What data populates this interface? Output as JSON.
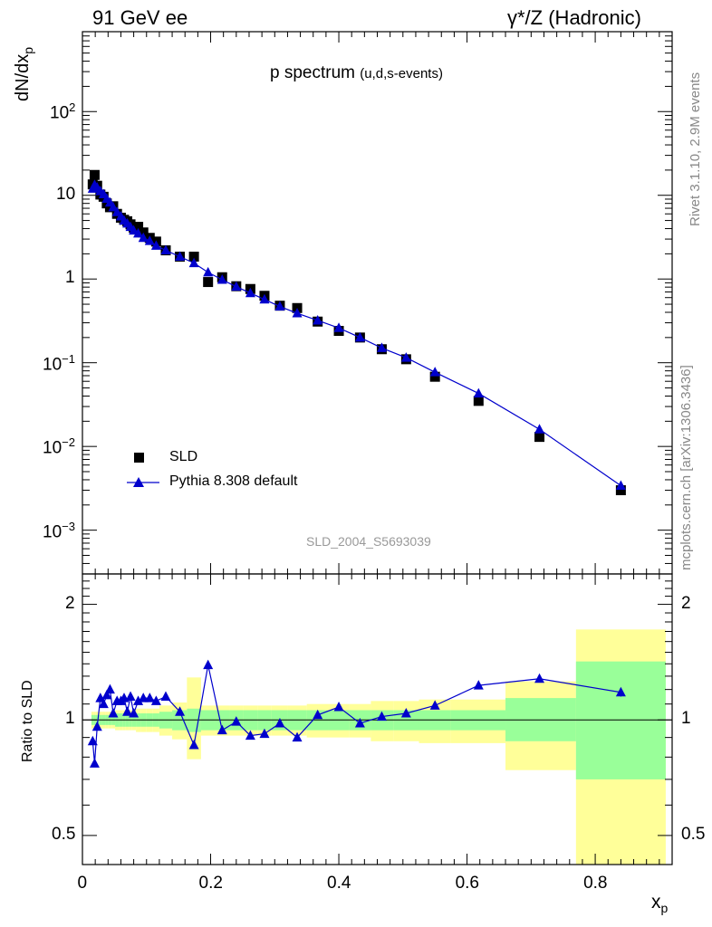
{
  "header": {
    "left": "91 GeV ee",
    "right": "γ*/Z (Hadronic)"
  },
  "side": {
    "rivet": "Rivet 3.1.10,  2.9M events",
    "mcplots": "mcplots.cern.ch [arXiv:1306.3436]"
  },
  "chart_data": [
    {
      "type": "scatter",
      "title": "p spectrum",
      "subtitle": "(u,d,s-events)",
      "ylabel": "dN/dx",
      "ylabel_sub": "p",
      "yscale": "log",
      "ylim": [
        0.0003,
        900
      ],
      "xlim": [
        0,
        0.92
      ],
      "yticks": [
        {
          "v": 0.001,
          "base": "10",
          "exp": "−3"
        },
        {
          "v": 0.01,
          "base": "10",
          "exp": "−2"
        },
        {
          "v": 0.1,
          "base": "10",
          "exp": "−1"
        },
        {
          "v": 1,
          "base": "1",
          "exp": ""
        },
        {
          "v": 10,
          "base": "10",
          "exp": ""
        },
        {
          "v": 100,
          "base": "10",
          "exp": "2"
        }
      ],
      "analysis_label": "SLD_2004_S5693039",
      "colors": {
        "data": "#000000",
        "mc": "#0000cc"
      },
      "series": [
        {
          "name": "SLD",
          "marker": "square",
          "x": [
            0.016,
            0.019,
            0.023,
            0.028,
            0.033,
            0.038,
            0.043,
            0.048,
            0.054,
            0.06,
            0.065,
            0.07,
            0.075,
            0.08,
            0.087,
            0.095,
            0.105,
            0.115,
            0.13,
            0.152,
            0.174,
            0.196,
            0.218,
            0.24,
            0.262,
            0.284,
            0.308,
            0.335,
            0.367,
            0.4,
            0.433,
            0.467,
            0.505,
            0.55,
            0.618,
            0.713,
            0.84
          ],
          "y": [
            13.5,
            17.5,
            13.0,
            10.2,
            9.6,
            8.0,
            7.2,
            7.4,
            6.0,
            5.4,
            5.1,
            4.9,
            4.5,
            4.1,
            4.2,
            3.6,
            3.1,
            2.8,
            2.2,
            1.85,
            1.85,
            0.92,
            1.05,
            0.82,
            0.76,
            0.63,
            0.48,
            0.45,
            0.31,
            0.24,
            0.2,
            0.145,
            0.11,
            0.068,
            0.035,
            0.013,
            0.003
          ]
        },
        {
          "name": "Pythia 8.308 default",
          "marker": "triangle",
          "x": [
            0.016,
            0.019,
            0.023,
            0.028,
            0.033,
            0.038,
            0.043,
            0.048,
            0.054,
            0.06,
            0.065,
            0.07,
            0.075,
            0.08,
            0.087,
            0.095,
            0.105,
            0.115,
            0.13,
            0.152,
            0.174,
            0.196,
            0.218,
            0.24,
            0.262,
            0.284,
            0.308,
            0.335,
            0.367,
            0.4,
            0.433,
            0.467,
            0.505,
            0.55,
            0.618,
            0.713,
            0.84
          ],
          "y": [
            12.0,
            13.3,
            12.4,
            11.2,
            10.3,
            9.1,
            8.2,
            7.2,
            6.3,
            5.6,
            5.0,
            4.6,
            4.2,
            3.8,
            3.5,
            3.1,
            2.85,
            2.5,
            2.2,
            1.85,
            1.55,
            1.2,
            0.98,
            0.81,
            0.68,
            0.57,
            0.47,
            0.39,
            0.32,
            0.26,
            0.2,
            0.15,
            0.115,
            0.077,
            0.043,
            0.016,
            0.0034
          ]
        }
      ],
      "legend": {
        "position": "bottom-left"
      }
    },
    {
      "type": "line",
      "ylabel": "Ratio to SLD",
      "xlabel": "x",
      "xlabel_sub": "p",
      "yscale": "log",
      "ylim": [
        0.42,
        2.4
      ],
      "xlim": [
        0,
        0.92
      ],
      "yticks": [
        0.5,
        1,
        2
      ],
      "ytick_labels": [
        "0.5",
        "1",
        "2"
      ],
      "xticks": [
        0,
        0.2,
        0.4,
        0.6,
        0.8
      ],
      "xtick_labels": [
        "0",
        "0.2",
        "0.4",
        "0.6",
        "0.8"
      ],
      "reference": 1,
      "colors": {
        "band_inner": "#99ff99",
        "band_outer": "#ffff99",
        "mc": "#0000cc"
      },
      "uncertainty_bands": {
        "edges": [
          0.014,
          0.0175,
          0.021,
          0.0255,
          0.0305,
          0.0355,
          0.0405,
          0.0455,
          0.051,
          0.057,
          0.0625,
          0.0675,
          0.0725,
          0.0775,
          0.0835,
          0.091,
          0.1,
          0.11,
          0.12,
          0.14,
          0.163,
          0.185,
          0.207,
          0.229,
          0.251,
          0.273,
          0.295,
          0.32,
          0.35,
          0.383,
          0.416,
          0.45,
          0.485,
          0.525,
          0.575,
          0.66,
          0.77,
          0.91
        ],
        "inner_lo": [
          0.97,
          0.97,
          0.97,
          0.97,
          0.97,
          0.97,
          0.97,
          0.97,
          0.96,
          0.96,
          0.96,
          0.96,
          0.96,
          0.96,
          0.96,
          0.96,
          0.96,
          0.96,
          0.95,
          0.94,
          0.93,
          0.94,
          0.94,
          0.94,
          0.94,
          0.94,
          0.94,
          0.94,
          0.94,
          0.94,
          0.94,
          0.94,
          0.94,
          0.94,
          0.94,
          0.88,
          0.7
        ],
        "inner_hi": [
          1.03,
          1.03,
          1.03,
          1.03,
          1.03,
          1.03,
          1.03,
          1.03,
          1.04,
          1.04,
          1.04,
          1.04,
          1.04,
          1.04,
          1.04,
          1.04,
          1.04,
          1.04,
          1.05,
          1.06,
          1.07,
          1.06,
          1.06,
          1.06,
          1.06,
          1.06,
          1.06,
          1.06,
          1.06,
          1.06,
          1.06,
          1.06,
          1.06,
          1.06,
          1.06,
          1.14,
          1.42
        ],
        "outer_lo": [
          0.95,
          0.95,
          0.95,
          0.95,
          0.95,
          0.95,
          0.95,
          0.95,
          0.94,
          0.94,
          0.94,
          0.94,
          0.94,
          0.94,
          0.93,
          0.93,
          0.93,
          0.93,
          0.91,
          0.89,
          0.79,
          0.91,
          0.91,
          0.91,
          0.91,
          0.91,
          0.91,
          0.91,
          0.9,
          0.9,
          0.9,
          0.88,
          0.88,
          0.87,
          0.87,
          0.74,
          0.42
        ],
        "outer_hi": [
          1.05,
          1.05,
          1.05,
          1.05,
          1.05,
          1.05,
          1.05,
          1.05,
          1.06,
          1.06,
          1.06,
          1.06,
          1.06,
          1.06,
          1.07,
          1.07,
          1.07,
          1.07,
          1.09,
          1.11,
          1.29,
          1.09,
          1.09,
          1.09,
          1.09,
          1.09,
          1.09,
          1.09,
          1.1,
          1.1,
          1.1,
          1.12,
          1.12,
          1.13,
          1.13,
          1.26,
          1.72
        ]
      },
      "series": [
        {
          "name": "Pythia 8.308 default",
          "marker": "triangle",
          "x": [
            0.016,
            0.019,
            0.023,
            0.028,
            0.033,
            0.038,
            0.043,
            0.048,
            0.054,
            0.06,
            0.065,
            0.07,
            0.075,
            0.08,
            0.087,
            0.095,
            0.105,
            0.115,
            0.13,
            0.152,
            0.174,
            0.196,
            0.218,
            0.24,
            0.262,
            0.284,
            0.308,
            0.335,
            0.367,
            0.4,
            0.433,
            0.467,
            0.505,
            0.55,
            0.618,
            0.713,
            0.84
          ],
          "y": [
            0.88,
            0.77,
            0.96,
            1.14,
            1.1,
            1.16,
            1.2,
            1.04,
            1.12,
            1.12,
            1.14,
            1.05,
            1.15,
            1.04,
            1.12,
            1.14,
            1.14,
            1.12,
            1.15,
            1.05,
            0.86,
            1.39,
            0.94,
            0.99,
            0.91,
            0.92,
            0.98,
            0.9,
            1.03,
            1.08,
            0.98,
            1.02,
            1.04,
            1.09,
            1.23,
            1.28,
            1.18
          ],
          "err_last": [
            1.15,
            1.21
          ]
        }
      ]
    }
  ]
}
